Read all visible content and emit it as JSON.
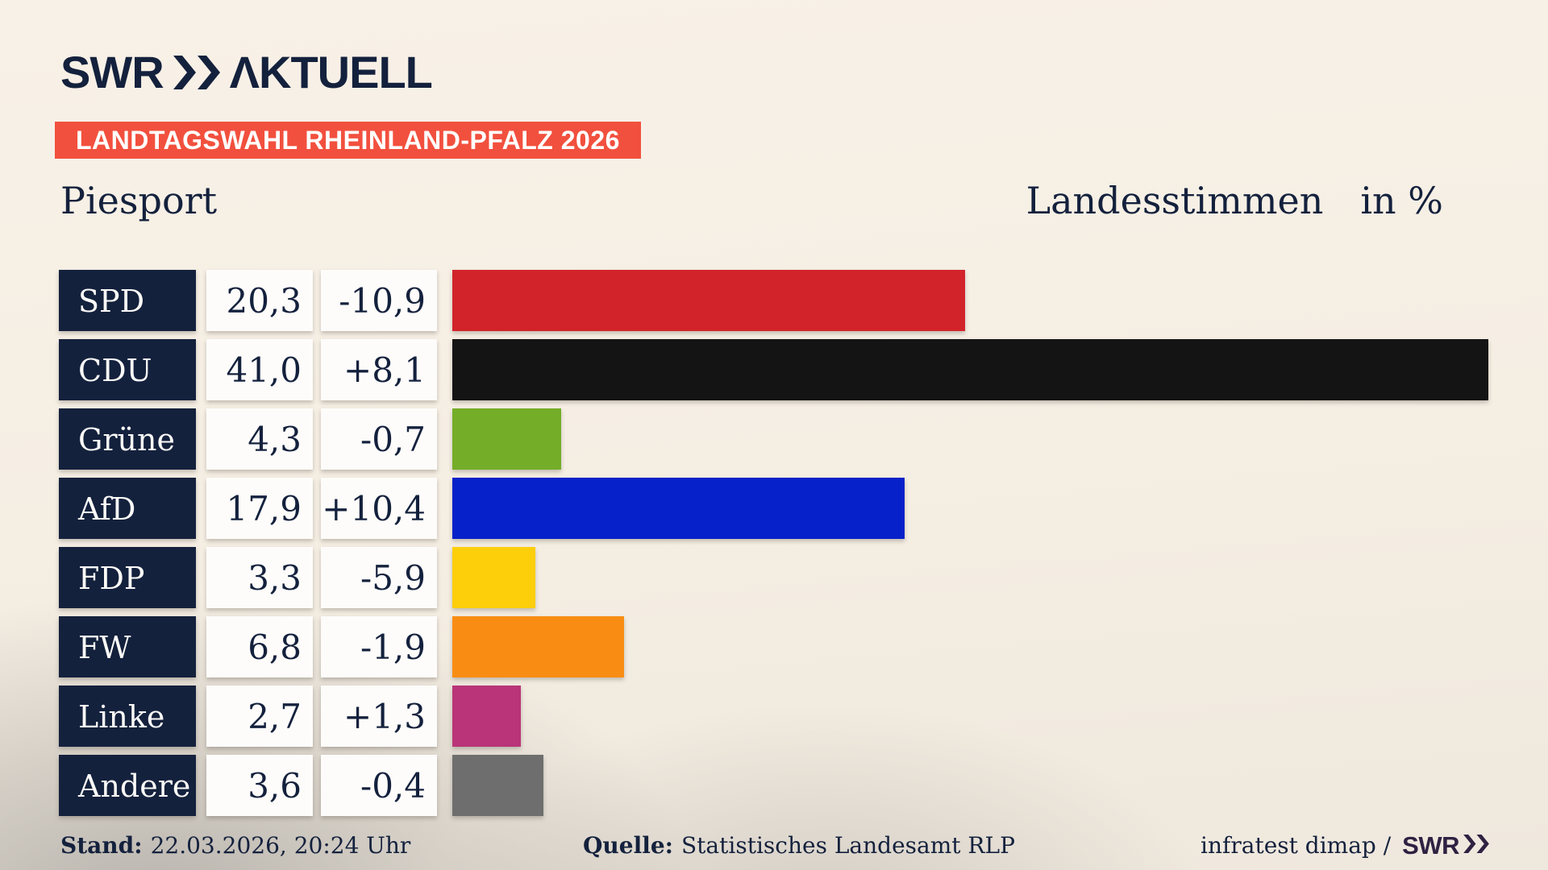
{
  "brand": {
    "swr": "SWR",
    "aktuell": "ΛKTUELL"
  },
  "banner": {
    "label": "LANDTAGSWAHL RHEINLAND-PFALZ 2026",
    "bg_color": "#f2503e"
  },
  "header": {
    "place": "Piesport",
    "measure": "Landesstimmen",
    "unit": "in %"
  },
  "rows": [
    {
      "party": "SPD",
      "value": "20,3",
      "change": "-10,9",
      "value_num": 20.3,
      "color": "#d2232a"
    },
    {
      "party": "CDU",
      "value": "41,0",
      "change": "+8,1",
      "value_num": 41.0,
      "color": "#141414"
    },
    {
      "party": "Grüne",
      "value": "4,3",
      "change": "-0,7",
      "value_num": 4.3,
      "color": "#74ad28"
    },
    {
      "party": "AfD",
      "value": "17,9",
      "change": "+10,4",
      "value_num": 17.9,
      "color": "#0621c9"
    },
    {
      "party": "FDP",
      "value": "3,3",
      "change": "-5,9",
      "value_num": 3.3,
      "color": "#fdce0a"
    },
    {
      "party": "FW",
      "value": "6,8",
      "change": "-1,9",
      "value_num": 6.8,
      "color": "#f98d13"
    },
    {
      "party": "Linke",
      "value": "2,7",
      "change": "+1,3",
      "value_num": 2.7,
      "color": "#b93478"
    },
    {
      "party": "Andere",
      "value": "3,6",
      "change": "-0,4",
      "value_num": 3.6,
      "color": "#6e6e6e"
    }
  ],
  "chart_data": {
    "type": "bar",
    "orientation": "horizontal",
    "title": "Landtagswahl Rheinland-Pfalz 2026 – Piesport – Landesstimmen in %",
    "categories": [
      "SPD",
      "CDU",
      "Grüne",
      "AfD",
      "FDP",
      "FW",
      "Linke",
      "Andere"
    ],
    "values": [
      20.3,
      41.0,
      4.3,
      17.9,
      3.3,
      6.8,
      2.7,
      3.6
    ],
    "changes": [
      -10.9,
      8.1,
      -0.7,
      10.4,
      -5.9,
      -1.9,
      1.3,
      -0.4
    ],
    "unit": "%",
    "xlim": [
      0,
      43
    ],
    "grid": false,
    "legend": false,
    "bar_colors": [
      "#d2232a",
      "#141414",
      "#74ad28",
      "#0621c9",
      "#fdce0a",
      "#f98d13",
      "#b93478",
      "#6e6e6e"
    ]
  },
  "footer": {
    "stand_label": "Stand:",
    "stand_value": "22.03.2026, 20:24 Uhr",
    "source_label": "Quelle:",
    "source_value": "Statistisches Landesamt RLP",
    "credit": "infratest dimap /",
    "credit_brand": "SWR"
  },
  "colors": {
    "navy": "#14213d",
    "background_cream": "#f5eee3",
    "background_shade": "#cfcbc5",
    "box_white": "#fdfcfa",
    "banner_red": "#f2503e",
    "footer_brand_purple": "#2f2142"
  }
}
